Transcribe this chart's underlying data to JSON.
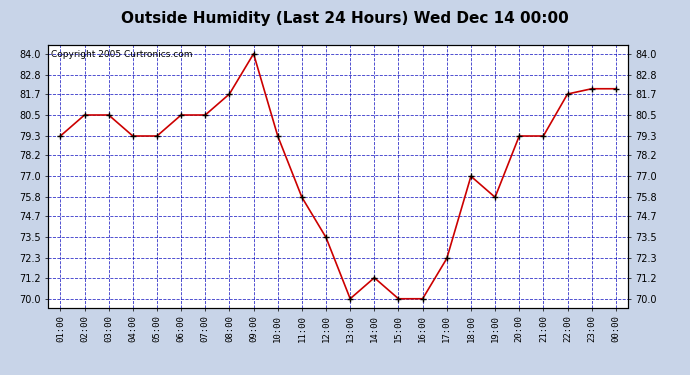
{
  "title": "Outside Humidity (Last 24 Hours) Wed Dec 14 00:00",
  "copyright": "Copyright 2005 Curtronics.com",
  "x_labels": [
    "01:00",
    "02:00",
    "03:00",
    "04:00",
    "05:00",
    "06:00",
    "07:00",
    "08:00",
    "09:00",
    "10:00",
    "11:00",
    "12:00",
    "13:00",
    "14:00",
    "15:00",
    "16:00",
    "17:00",
    "18:00",
    "19:00",
    "20:00",
    "21:00",
    "22:00",
    "23:00",
    "00:00"
  ],
  "y_values": [
    79.3,
    80.5,
    80.5,
    79.3,
    79.3,
    80.5,
    80.5,
    81.7,
    84.0,
    79.3,
    75.8,
    73.5,
    70.0,
    71.2,
    70.0,
    70.0,
    72.3,
    77.0,
    75.8,
    79.3,
    79.3,
    81.7,
    82.0,
    82.0
  ],
  "y_ticks": [
    70.0,
    71.2,
    72.3,
    73.5,
    74.7,
    75.8,
    77.0,
    78.2,
    79.3,
    80.5,
    81.7,
    82.8,
    84.0
  ],
  "y_min": 69.5,
  "y_max": 84.5,
  "line_color": "#cc0000",
  "marker_color": "#000000",
  "bg_color": "#ffffff",
  "plot_bg_color": "#ffffff",
  "outer_bg_color": "#c8d4e8",
  "grid_color": "#0000bb",
  "title_fontsize": 11,
  "copyright_fontsize": 6.5
}
